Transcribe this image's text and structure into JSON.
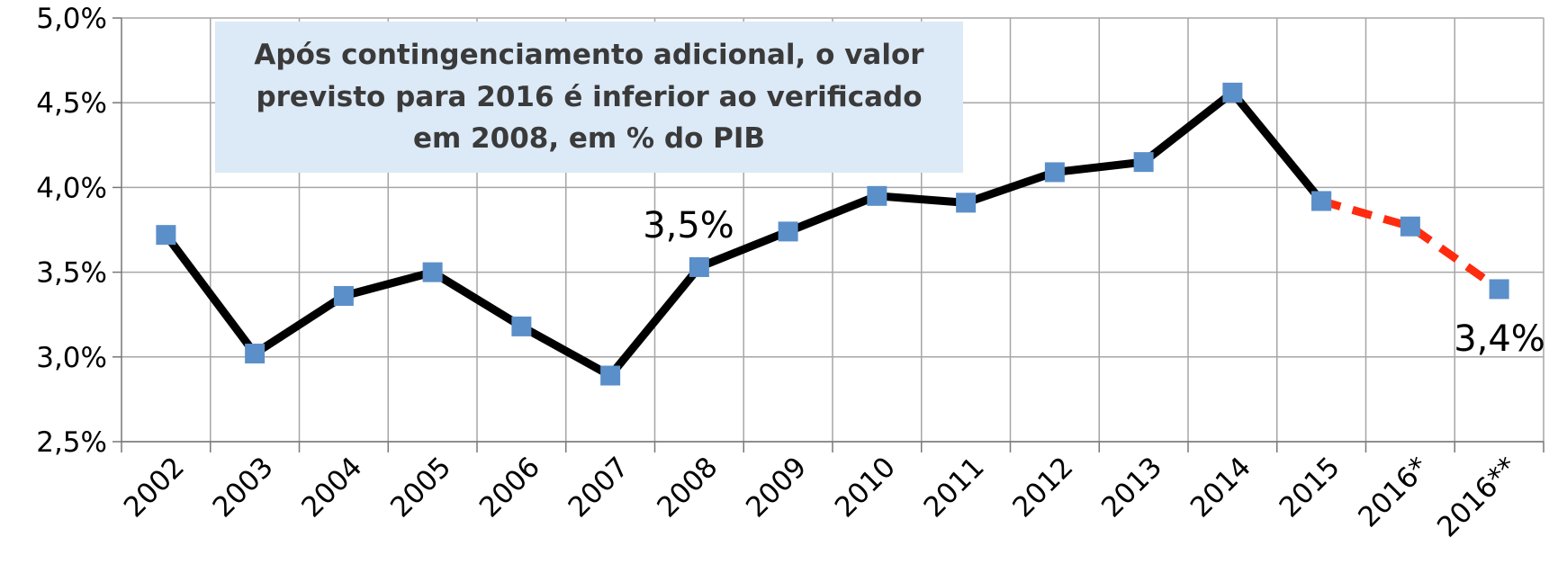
{
  "chart_data": {
    "type": "line",
    "categories": [
      "2002",
      "2003",
      "2004",
      "2005",
      "2006",
      "2007",
      "2008",
      "2009",
      "2010",
      "2011",
      "2012",
      "2013",
      "2014",
      "2015",
      "2016*",
      "2016**"
    ],
    "series": [
      {
        "color": "#000000",
        "marker_color": "#5b8fc9",
        "style": "solid",
        "values": [
          3.72,
          3.02,
          3.36,
          3.5,
          3.18,
          2.89,
          3.53,
          3.74,
          3.95,
          3.91,
          4.09,
          4.15,
          4.56,
          3.92,
          null,
          null
        ]
      },
      {
        "color": "#ff2b0f",
        "marker_color": "#5b8fc9",
        "style": "dashed",
        "values": [
          null,
          null,
          null,
          null,
          null,
          null,
          null,
          null,
          null,
          null,
          null,
          null,
          null,
          3.92,
          3.77,
          3.4
        ]
      }
    ],
    "ylim": [
      2.5,
      5.0
    ],
    "yticks": [
      {
        "value": 2.5,
        "label": "2,5%"
      },
      {
        "value": 3.0,
        "label": "3,0%"
      },
      {
        "value": 3.5,
        "label": "3,5%"
      },
      {
        "value": 4.0,
        "label": "4,0%"
      },
      {
        "value": 4.5,
        "label": "4,5%"
      },
      {
        "value": 5.0,
        "label": "5,0%"
      }
    ],
    "grid": true,
    "annotations": [
      "Após contingenciamento adicional, o valor previsto para 2016 é inferior ao verificado em 2008, em % do PIB",
      "3,5%",
      "3,4%"
    ]
  }
}
